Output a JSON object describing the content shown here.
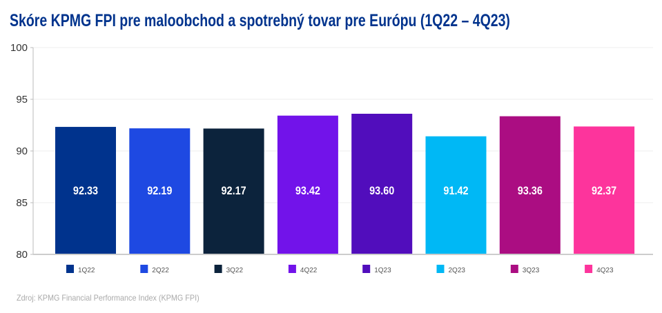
{
  "chart_data": {
    "type": "bar",
    "title": "Skóre KPMG FPI pre maloobchod a spotrebný tovar pre Európu (1Q22 – 4Q23)",
    "categories": [
      "1Q22",
      "2Q22",
      "3Q22",
      "4Q22",
      "1Q23",
      "2Q23",
      "3Q23",
      "4Q23"
    ],
    "values": [
      92.33,
      92.19,
      92.17,
      93.42,
      93.6,
      91.42,
      93.36,
      92.37
    ],
    "data_labels": [
      "92.33",
      "92.19",
      "92.17",
      "93.42",
      "93.60",
      "91.42",
      "93.36",
      "92.37"
    ],
    "colors": [
      "#00338D",
      "#1E49E2",
      "#0C233C",
      "#7213EA",
      "#510DBC",
      "#00B8F5",
      "#AB0D82",
      "#FD349C"
    ],
    "ylim": [
      80,
      100
    ],
    "yticks": [
      "80",
      "85",
      "90",
      "95",
      "100"
    ],
    "xlabel": "",
    "ylabel": "",
    "grid": true,
    "legend": "bottom"
  },
  "source": "Zdroj: KPMG Financial Performance Index (KPMG FPI)"
}
